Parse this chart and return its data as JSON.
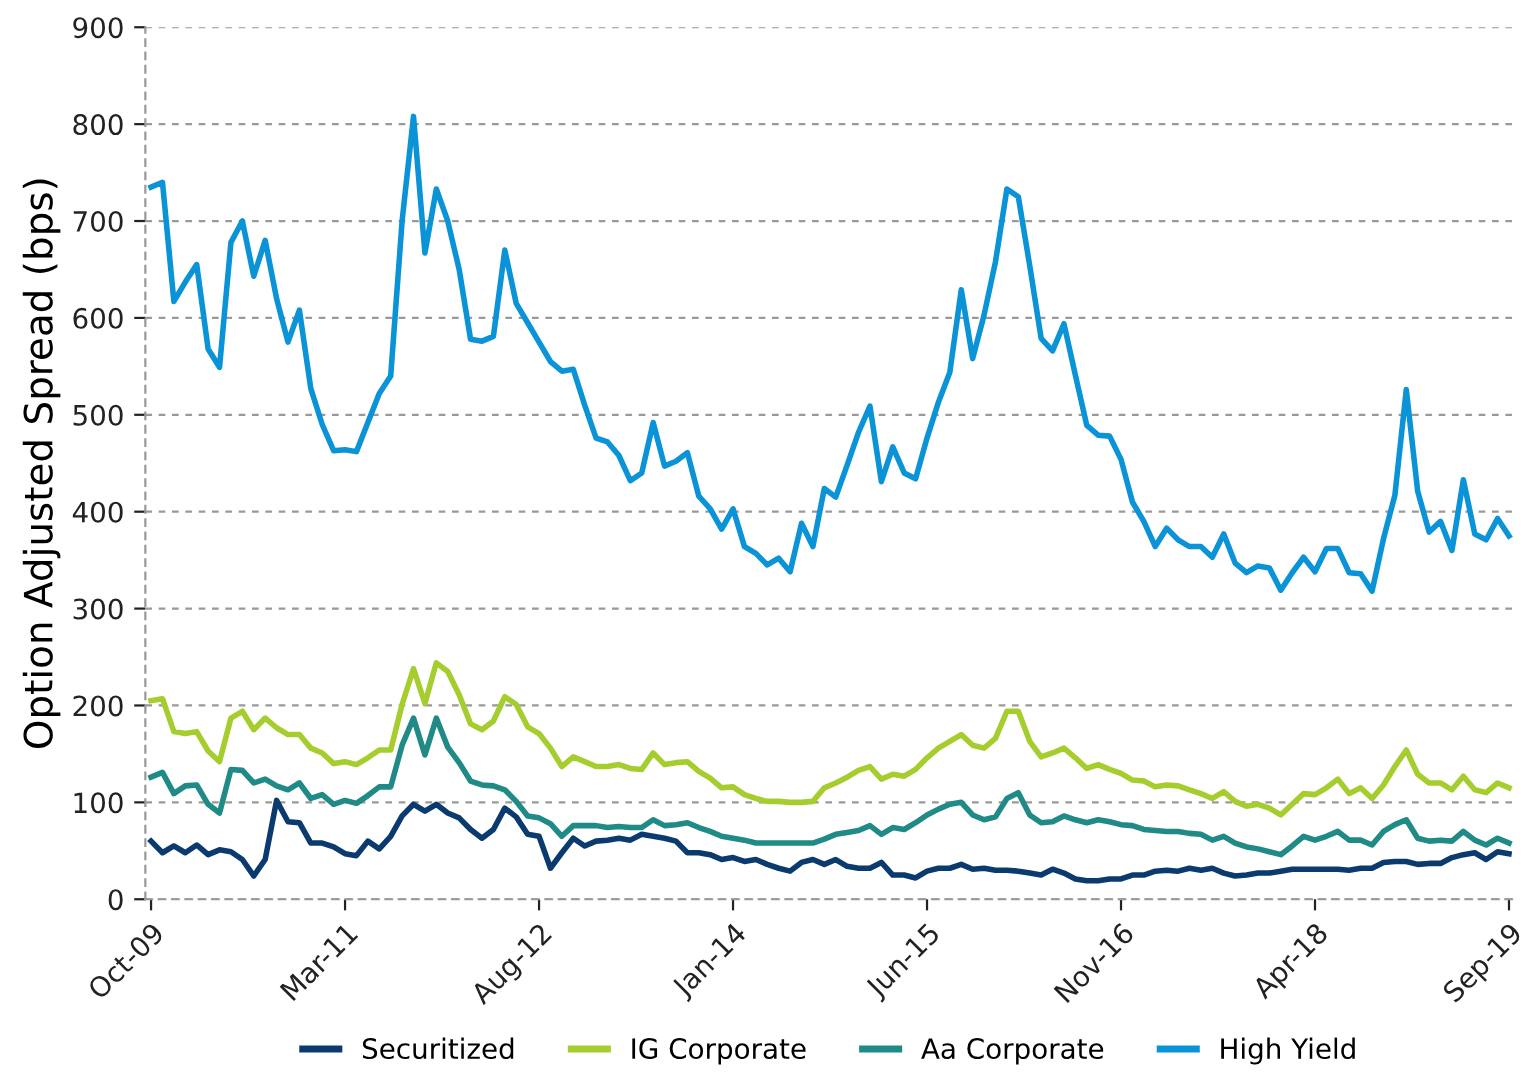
{
  "chart_data": {
    "type": "line",
    "ylabel": "Option Adjusted Spread (bps)",
    "categories": [
      "Oct-09",
      null,
      null,
      null,
      null,
      null,
      null,
      null,
      null,
      null,
      null,
      null,
      null,
      null,
      null,
      null,
      null,
      "Mar-11",
      null,
      null,
      null,
      null,
      null,
      null,
      null,
      null,
      null,
      null,
      null,
      null,
      null,
      null,
      null,
      null,
      "Aug-12",
      null,
      null,
      null,
      null,
      null,
      null,
      null,
      null,
      null,
      null,
      null,
      null,
      null,
      null,
      null,
      null,
      "Jan-14",
      null,
      null,
      null,
      null,
      null,
      null,
      null,
      null,
      null,
      null,
      null,
      null,
      null,
      null,
      null,
      null,
      "Jun-15",
      null,
      null,
      null,
      null,
      null,
      null,
      null,
      null,
      null,
      null,
      null,
      null,
      null,
      null,
      null,
      null,
      "Nov-16",
      null,
      null,
      null,
      null,
      null,
      null,
      null,
      null,
      null,
      null,
      null,
      null,
      null,
      null,
      null,
      null,
      "Apr-18",
      null,
      null,
      null,
      null,
      null,
      null,
      null,
      null,
      null,
      null,
      null,
      null,
      null,
      null,
      null,
      null,
      "Sep-19"
    ],
    "ylim": [
      0,
      900
    ],
    "yticks": [
      0,
      100,
      200,
      300,
      400,
      500,
      600,
      700,
      800,
      900
    ],
    "grid": "y",
    "legend": "bottom",
    "series": [
      {
        "name": "Securitized",
        "color": "#0b3a6e",
        "values": [
          60,
          48,
          55,
          48,
          56,
          46,
          51,
          49,
          41,
          24,
          41,
          102,
          80,
          79,
          58,
          58,
          54,
          47,
          45,
          60,
          52,
          65,
          86,
          98,
          91,
          98,
          89,
          84,
          72,
          63,
          72,
          94,
          85,
          67,
          65,
          32,
          48,
          63,
          55,
          60,
          61,
          63,
          61,
          67,
          65,
          63,
          60,
          48,
          48,
          46,
          41,
          43,
          39,
          41,
          36,
          32,
          29,
          38,
          41,
          36,
          41,
          34,
          32,
          32,
          38,
          25,
          25,
          22,
          29,
          32,
          32,
          36,
          31,
          32,
          30,
          30,
          29,
          27,
          25,
          31,
          27,
          21,
          19,
          19,
          21,
          21,
          25,
          25,
          29,
          30,
          29,
          32,
          30,
          32,
          27,
          24,
          25,
          27,
          27,
          29,
          31,
          31,
          31,
          31,
          31,
          30,
          32,
          32,
          38,
          39,
          39,
          36,
          37,
          37,
          43,
          46,
          48,
          41,
          49,
          47
        ]
      },
      {
        "name": "IG Corporate",
        "color": "#a6cd2e",
        "values": [
          205,
          207,
          173,
          171,
          173,
          153,
          142,
          187,
          194,
          175,
          187,
          177,
          170,
          170,
          156,
          151,
          140,
          142,
          139,
          146,
          154,
          154,
          201,
          238,
          202,
          244,
          235,
          211,
          181,
          175,
          184,
          209,
          201,
          178,
          171,
          156,
          137,
          147,
          142,
          137,
          137,
          139,
          135,
          134,
          151,
          139,
          141,
          142,
          132,
          125,
          115,
          116,
          108,
          104,
          101,
          101,
          100,
          100,
          101,
          115,
          120,
          126,
          133,
          137,
          124,
          129,
          127,
          134,
          146,
          156,
          163,
          170,
          159,
          156,
          166,
          194,
          194,
          163,
          147,
          151,
          156,
          146,
          135,
          139,
          134,
          130,
          123,
          122,
          116,
          118,
          117,
          113,
          109,
          104,
          111,
          101,
          96,
          98,
          94,
          87,
          98,
          109,
          108,
          115,
          124,
          109,
          115,
          104,
          118,
          137,
          154,
          129,
          120,
          120,
          113,
          127,
          113,
          110,
          120,
          115
        ]
      },
      {
        "name": "Aa Corporate",
        "color": "#1f8a86",
        "values": [
          126,
          131,
          109,
          117,
          118,
          98,
          89,
          134,
          133,
          120,
          124,
          117,
          113,
          120,
          104,
          108,
          98,
          102,
          99,
          107,
          116,
          116,
          159,
          187,
          149,
          187,
          157,
          141,
          122,
          118,
          117,
          113,
          101,
          86,
          84,
          78,
          65,
          76,
          76,
          76,
          74,
          75,
          74,
          74,
          82,
          76,
          77,
          79,
          74,
          70,
          65,
          63,
          61,
          58,
          58,
          58,
          58,
          58,
          58,
          62,
          67,
          69,
          71,
          76,
          67,
          74,
          72,
          79,
          87,
          93,
          98,
          100,
          87,
          82,
          85,
          104,
          110,
          87,
          79,
          80,
          86,
          82,
          79,
          82,
          80,
          77,
          76,
          72,
          71,
          70,
          70,
          68,
          67,
          61,
          65,
          58,
          54,
          52,
          49,
          46,
          55,
          65,
          61,
          65,
          70,
          61,
          61,
          56,
          70,
          77,
          82,
          63,
          60,
          61,
          60,
          70,
          61,
          56,
          63,
          58
        ]
      },
      {
        "name": "High Yield",
        "color": "#0a93d6",
        "values": [
          735,
          740,
          617,
          637,
          655,
          568,
          549,
          678,
          700,
          643,
          680,
          620,
          575,
          608,
          527,
          490,
          463,
          464,
          462,
          492,
          522,
          540,
          700,
          808,
          667,
          733,
          700,
          650,
          578,
          576,
          581,
          670,
          615,
          595,
          575,
          555,
          545,
          547,
          510,
          476,
          472,
          458,
          432,
          440,
          492,
          447,
          452,
          461,
          416,
          403,
          382,
          403,
          364,
          357,
          345,
          352,
          338,
          388,
          364,
          424,
          415,
          448,
          482,
          509,
          431,
          467,
          440,
          434,
          476,
          513,
          544,
          629,
          558,
          603,
          658,
          733,
          725,
          654,
          579,
          566,
          594,
          541,
          489,
          479,
          478,
          454,
          410,
          390,
          364,
          383,
          371,
          364,
          364,
          353,
          377,
          347,
          337,
          344,
          342,
          319,
          337,
          353,
          338,
          362,
          362,
          337,
          336,
          318,
          372,
          417,
          526,
          421,
          379,
          390,
          360,
          433,
          377,
          371,
          393,
          375
        ]
      }
    ]
  }
}
